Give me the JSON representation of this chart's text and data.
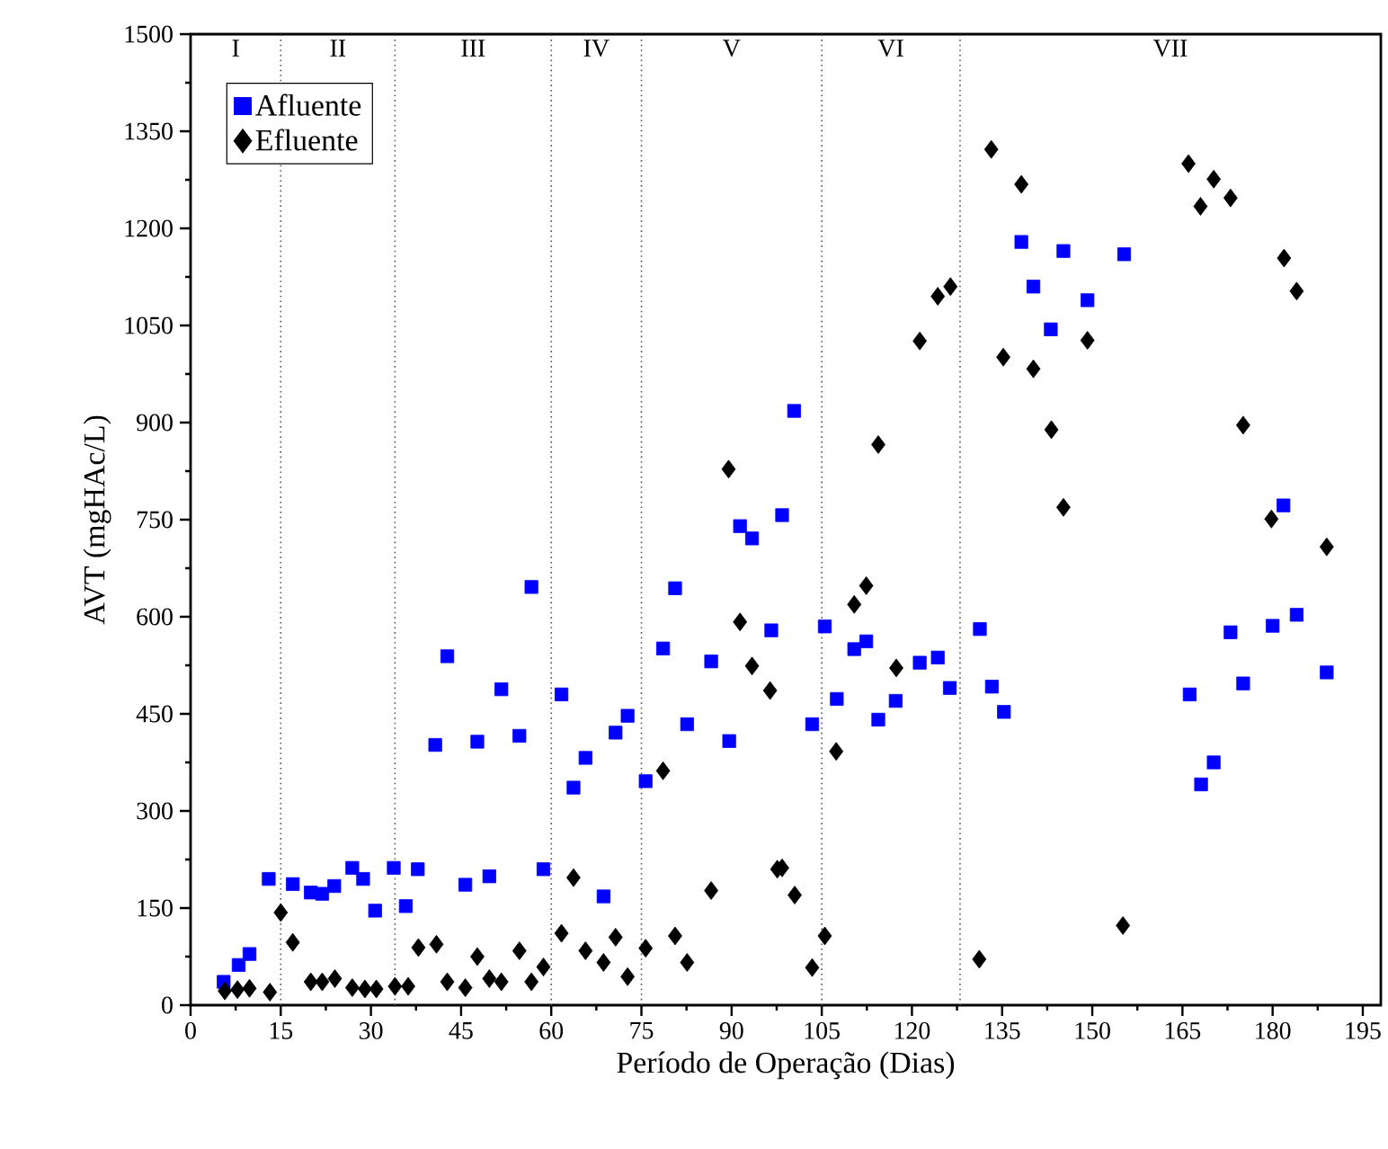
{
  "chart_data": {
    "type": "scatter",
    "xlabel": "Período de Operação (Dias)",
    "ylabel": "AVT (mgHAc/L)",
    "xlim": [
      0,
      198
    ],
    "ylim": [
      0,
      1500
    ],
    "xticks": [
      0,
      15,
      30,
      45,
      60,
      75,
      90,
      105,
      120,
      135,
      150,
      165,
      180,
      195
    ],
    "yticks": [
      0,
      150,
      300,
      450,
      600,
      750,
      900,
      1050,
      1200,
      1350,
      1500
    ],
    "grid": false,
    "legend": "top left",
    "ref_lines": [
      {
        "axis": "x",
        "value": 15,
        "line_style": "dotted",
        "color": "#555555"
      },
      {
        "axis": "x",
        "value": 34,
        "line_style": "dotted",
        "color": "#555555"
      },
      {
        "axis": "x",
        "value": 60,
        "line_style": "dotted",
        "color": "#555555"
      },
      {
        "axis": "x",
        "value": 75,
        "line_style": "dotted",
        "color": "#555555"
      },
      {
        "axis": "x",
        "value": 105,
        "line_style": "dotted",
        "color": "#555555"
      },
      {
        "axis": "x",
        "value": 128,
        "line_style": "dotted",
        "color": "#555555"
      }
    ],
    "annotations": [
      "I",
      "II",
      "III",
      "IV",
      "V",
      "VI",
      "VII"
    ],
    "series": [
      {
        "name": "Afluente",
        "color": "#0000ff",
        "marker": "square",
        "x": [
          5.5,
          8,
          9.8,
          13,
          17,
          20,
          21.9,
          23.9,
          26.9,
          28.7,
          30.7,
          33.8,
          35.8,
          37.8,
          40.7,
          42.7,
          45.7,
          47.7,
          49.7,
          51.7,
          54.7,
          56.7,
          58.7,
          61.7,
          63.7,
          65.7,
          68.7,
          70.7,
          72.7,
          75.7,
          78.6,
          80.6,
          82.6,
          86.6,
          89.6,
          91.4,
          93.4,
          96.6,
          98.4,
          100.4,
          103.4,
          105.5,
          107.5,
          110.4,
          112.4,
          114.4,
          117.3,
          121.3,
          124.3,
          126.3,
          131.3,
          133.3,
          135.3,
          138.2,
          140.2,
          143.1,
          145.2,
          149.2,
          155.3,
          166.2,
          168.1,
          170.2,
          173,
          175.1,
          180,
          181.8,
          184,
          189
        ],
        "values": [
          36,
          62,
          79,
          195,
          187,
          174,
          172,
          184,
          212,
          195,
          146,
          212,
          153,
          210,
          402,
          539,
          186,
          407,
          199,
          488,
          416,
          646,
          210,
          480,
          336,
          382,
          168,
          421,
          447,
          346,
          551,
          644,
          434,
          531,
          408,
          740,
          721,
          579,
          757,
          918,
          434,
          585,
          473,
          550,
          562,
          441,
          470,
          529,
          537,
          490,
          581,
          492,
          453,
          1179,
          1110,
          1044,
          1165,
          1089,
          1160,
          480,
          341,
          375,
          576,
          497,
          586,
          772,
          603,
          514
        ]
      },
      {
        "name": "Efluente",
        "color": "#000000",
        "marker": "diamond",
        "x": [
          5.7,
          7.8,
          9.8,
          13.2,
          15,
          17,
          20,
          21.9,
          24,
          26.9,
          29,
          30.9,
          34,
          36.2,
          37.9,
          40.9,
          42.7,
          45.7,
          47.7,
          49.7,
          51.7,
          54.7,
          56.7,
          58.7,
          61.7,
          63.7,
          65.7,
          68.7,
          70.7,
          72.7,
          75.7,
          78.6,
          80.6,
          82.6,
          86.6,
          89.5,
          91.4,
          93.4,
          96.4,
          97.6,
          98.4,
          100.5,
          103.4,
          105.5,
          107.4,
          110.4,
          112.4,
          114.4,
          117.4,
          121.3,
          124.3,
          126.4,
          131.2,
          133.2,
          135.2,
          138.2,
          140.2,
          143.2,
          145.2,
          149.2,
          155.1,
          166,
          168,
          170.2,
          173,
          175.1,
          179.8,
          181.9,
          184,
          189
        ],
        "values": [
          22,
          24,
          26,
          20,
          143,
          97,
          36,
          36,
          41,
          27,
          25,
          25,
          29,
          29,
          89,
          94,
          36,
          27,
          75,
          41,
          36,
          84,
          36,
          59,
          111,
          197,
          84,
          66,
          105,
          44,
          88,
          362,
          107,
          66,
          177,
          828,
          592,
          524,
          486,
          210,
          212,
          170,
          58,
          107,
          392,
          619,
          648,
          866,
          521,
          1026,
          1095,
          1110,
          71,
          1322,
          1001,
          1268,
          983,
          889,
          769,
          1027,
          123,
          1300,
          1234,
          1276,
          1247,
          896,
          751,
          1154,
          1103,
          708
        ]
      }
    ]
  }
}
